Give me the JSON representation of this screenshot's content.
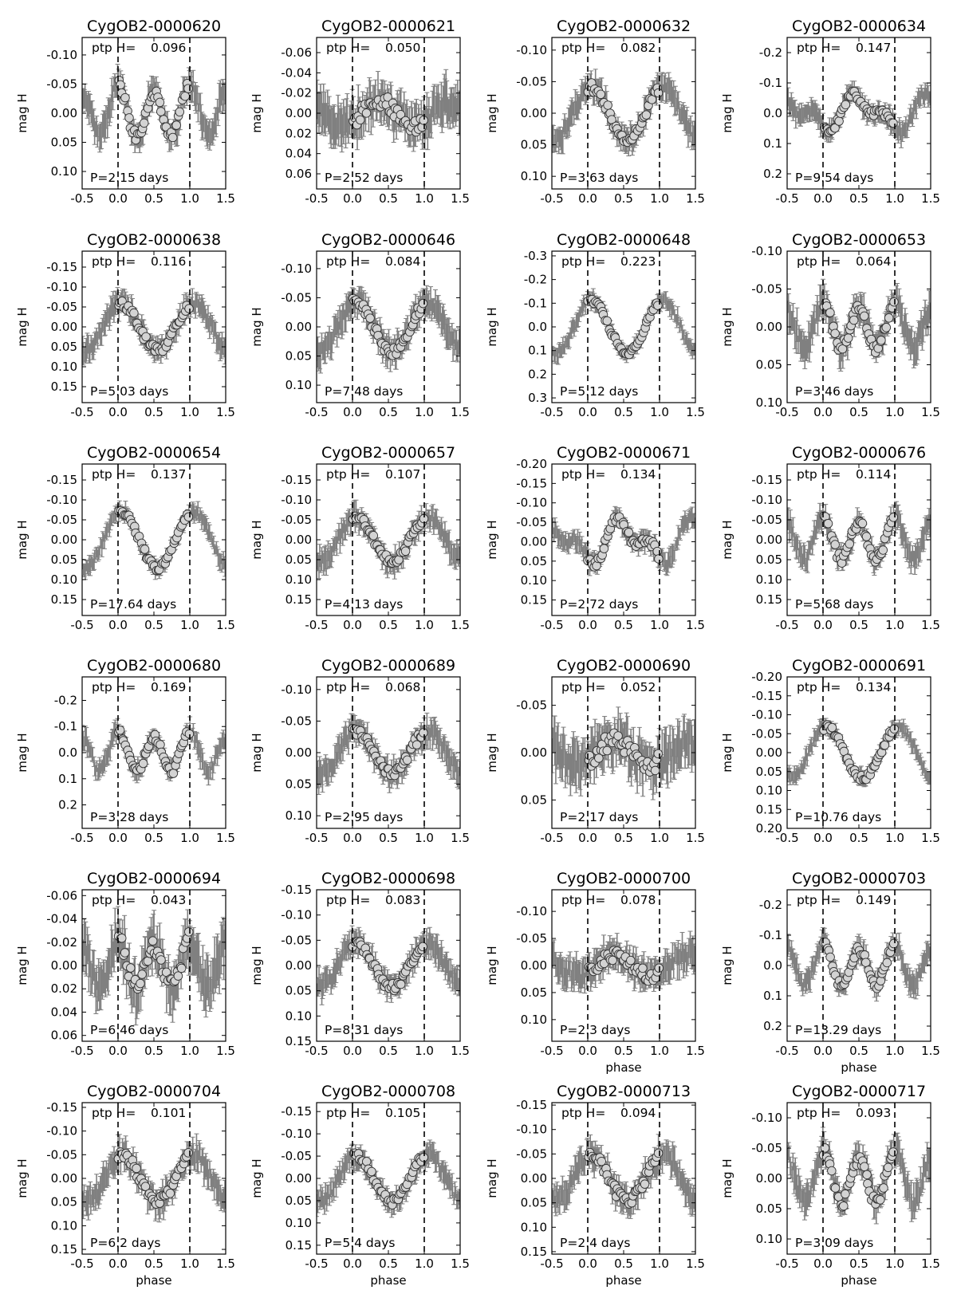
{
  "figure": {
    "rows": 6,
    "cols": 4,
    "xlim": [
      -0.5,
      1.5
    ],
    "xticks": [
      "-0.5",
      "0.0",
      "0.5",
      "1.0",
      "1.5"
    ],
    "reference_lines_at_phase": [
      0.0,
      1.0
    ],
    "ylabel": "mag H",
    "xlabel": "phase",
    "xlabel_panels": [
      18,
      19,
      20,
      21,
      22,
      23
    ],
    "ptp_prefix": "ptp H=",
    "y_inverted": true,
    "colors": {
      "errorbars": "#808080",
      "markers_fill": "#d3d3d3",
      "markers_edge": "#333333",
      "axes": "#000000",
      "reference_lines": "#000000"
    }
  },
  "chart_data": [
    {
      "type": "scatter",
      "title": "CygOB2-0000620",
      "ptp": "0.096",
      "period": "P=2.15 days",
      "ylim": [
        0.13,
        -0.13
      ],
      "yticks": [
        "-0.10",
        "-0.05",
        "0.00",
        "0.05",
        "0.10"
      ],
      "shape": "double",
      "amp": 0.048,
      "offset": -0.002,
      "err": 0.03
    },
    {
      "type": "scatter",
      "title": "CygOB2-0000621",
      "ptp": "0.050",
      "period": "P=2.52 days",
      "ylim": [
        0.075,
        -0.075
      ],
      "yticks": [
        "-0.06",
        "-0.04",
        "-0.02",
        "0.00",
        "0.02",
        "0.04",
        "0.06"
      ],
      "shape": "noisy",
      "amp": 0.025,
      "offset": 0.0,
      "err": 0.025
    },
    {
      "type": "scatter",
      "title": "CygOB2-0000632",
      "ptp": "0.082",
      "period": "P=3.63 days",
      "ylim": [
        0.12,
        -0.12
      ],
      "yticks": [
        "-0.10",
        "-0.05",
        "0.00",
        "0.05",
        "0.10"
      ],
      "shape": "single",
      "amp": 0.041,
      "offset": 0.0,
      "err": 0.025
    },
    {
      "type": "scatter",
      "title": "CygOB2-0000634",
      "ptp": "0.147",
      "period": "P=9.54 days",
      "ylim": [
        0.25,
        -0.25
      ],
      "yticks": [
        "-0.2",
        "-0.1",
        "0.0",
        "0.1",
        "0.2"
      ],
      "shape": "sawtooth",
      "amp": 0.074,
      "offset": 0.0,
      "err": 0.04
    },
    {
      "type": "scatter",
      "title": "CygOB2-0000638",
      "ptp": "0.116",
      "period": "P=5.03 days",
      "ylim": [
        0.19,
        -0.19
      ],
      "yticks": [
        "-0.15",
        "-0.10",
        "-0.05",
        "0.00",
        "0.05",
        "0.10",
        "0.15"
      ],
      "shape": "single",
      "amp": 0.058,
      "offset": 0.0,
      "err": 0.035
    },
    {
      "type": "scatter",
      "title": "CygOB2-0000646",
      "ptp": "0.084",
      "period": "P=7.48 days",
      "ylim": [
        0.13,
        -0.13
      ],
      "yticks": [
        "-0.10",
        "-0.05",
        "0.00",
        "0.05",
        "0.10"
      ],
      "shape": "single",
      "amp": 0.042,
      "offset": 0.0,
      "err": 0.03
    },
    {
      "type": "scatter",
      "title": "CygOB2-0000648",
      "ptp": "0.223",
      "period": "P=5.12 days",
      "ylim": [
        0.32,
        -0.32
      ],
      "yticks": [
        "-0.3",
        "-0.2",
        "-0.1",
        "0.0",
        "0.1",
        "0.2",
        "0.3"
      ],
      "shape": "single",
      "amp": 0.112,
      "offset": 0.0,
      "err": 0.04
    },
    {
      "type": "scatter",
      "title": "CygOB2-0000653",
      "ptp": "0.064",
      "period": "P=3.46 days",
      "ylim": [
        0.1,
        -0.1
      ],
      "yticks": [
        "-0.10",
        "-0.05",
        "0.00",
        "0.05",
        "0.10"
      ],
      "shape": "double",
      "amp": 0.032,
      "offset": 0.0,
      "err": 0.025
    },
    {
      "type": "scatter",
      "title": "CygOB2-0000654",
      "ptp": "0.137",
      "period": "P=17.64 days",
      "ylim": [
        0.19,
        -0.19
      ],
      "yticks": [
        "-0.15",
        "-0.10",
        "-0.05",
        "0.00",
        "0.05",
        "0.10",
        "0.15"
      ],
      "shape": "single",
      "amp": 0.07,
      "offset": 0.0,
      "err": 0.025
    },
    {
      "type": "scatter",
      "title": "CygOB2-0000657",
      "ptp": "0.107",
      "period": "P=4.13 days",
      "ylim": [
        0.19,
        -0.19
      ],
      "yticks": [
        "-0.15",
        "-0.10",
        "-0.05",
        "0.00",
        "0.05",
        "0.10",
        "0.15"
      ],
      "shape": "single",
      "amp": 0.055,
      "offset": 0.0,
      "err": 0.035
    },
    {
      "type": "scatter",
      "title": "CygOB2-0000671",
      "ptp": "0.134",
      "period": "P=2.72 days",
      "ylim": [
        0.19,
        -0.2
      ],
      "yticks": [
        "-0.20",
        "-0.15",
        "-0.10",
        "-0.05",
        "0.00",
        "0.05",
        "0.10",
        "0.15"
      ],
      "shape": "sawtooth",
      "amp": 0.067,
      "offset": 0.0,
      "err": 0.03
    },
    {
      "type": "scatter",
      "title": "CygOB2-0000676",
      "ptp": "0.114",
      "period": "P=5.68 days",
      "ylim": [
        0.19,
        -0.19
      ],
      "yticks": [
        "-0.15",
        "-0.10",
        "-0.05",
        "0.00",
        "0.05",
        "0.10",
        "0.15"
      ],
      "shape": "double",
      "amp": 0.057,
      "offset": 0.0,
      "err": 0.035
    },
    {
      "type": "scatter",
      "title": "CygOB2-0000680",
      "ptp": "0.169",
      "period": "P=3.28 days",
      "ylim": [
        0.29,
        -0.29
      ],
      "yticks": [
        "-0.2",
        "-0.1",
        "0.0",
        "0.1",
        "0.2"
      ],
      "shape": "double",
      "amp": 0.085,
      "offset": 0.0,
      "err": 0.045
    },
    {
      "type": "scatter",
      "title": "CygOB2-0000689",
      "ptp": "0.068",
      "period": "P=2.95 days",
      "ylim": [
        0.12,
        -0.12
      ],
      "yticks": [
        "-0.10",
        "-0.05",
        "0.00",
        "0.05",
        "0.10"
      ],
      "shape": "single",
      "amp": 0.034,
      "offset": 0.0,
      "err": 0.025
    },
    {
      "type": "scatter",
      "title": "CygOB2-0000690",
      "ptp": "0.052",
      "period": "P=2.17 days",
      "ylim": [
        0.08,
        -0.08
      ],
      "yticks": [
        "-0.05",
        "0.00",
        "0.05"
      ],
      "shape": "noisy",
      "amp": 0.026,
      "offset": 0.0,
      "err": 0.03
    },
    {
      "type": "scatter",
      "title": "CygOB2-0000691",
      "ptp": "0.134",
      "period": "P=10.76 days",
      "ylim": [
        0.2,
        -0.2
      ],
      "yticks": [
        "-0.20",
        "-0.15",
        "-0.10",
        "-0.05",
        "0.00",
        "0.05",
        "0.10",
        "0.15",
        "0.20"
      ],
      "shape": "single",
      "amp": 0.067,
      "offset": 0.0,
      "err": 0.025
    },
    {
      "type": "scatter",
      "title": "CygOB2-0000694",
      "ptp": "0.043",
      "period": "P=6.46 days",
      "ylim": [
        0.065,
        -0.065
      ],
      "yticks": [
        "-0.06",
        "-0.04",
        "-0.02",
        "0.00",
        "0.02",
        "0.04",
        "0.06"
      ],
      "shape": "double",
      "amp": 0.022,
      "offset": 0.0,
      "err": 0.025
    },
    {
      "type": "scatter",
      "title": "CygOB2-0000698",
      "ptp": "0.083",
      "period": "P=8.31 days",
      "ylim": [
        0.15,
        -0.15
      ],
      "yticks": [
        "-0.15",
        "-0.10",
        "-0.05",
        "0.00",
        "0.05",
        "0.10",
        "0.15"
      ],
      "shape": "single",
      "amp": 0.042,
      "offset": 0.0,
      "err": 0.03
    },
    {
      "type": "scatter",
      "title": "CygOB2-0000700",
      "ptp": "0.078",
      "period": "P=2.3 days",
      "ylim": [
        0.14,
        -0.14
      ],
      "yticks": [
        "-0.10",
        "-0.05",
        "0.00",
        "0.05",
        "0.10"
      ],
      "shape": "noisy",
      "amp": 0.039,
      "offset": 0.0,
      "err": 0.035
    },
    {
      "type": "scatter",
      "title": "CygOB2-0000703",
      "ptp": "0.149",
      "period": "P=13.29 days",
      "ylim": [
        0.25,
        -0.25
      ],
      "yticks": [
        "-0.2",
        "-0.1",
        "0.0",
        "0.1",
        "0.2"
      ],
      "shape": "double",
      "amp": 0.075,
      "offset": 0.0,
      "err": 0.045
    },
    {
      "type": "scatter",
      "title": "CygOB2-0000704",
      "ptp": "0.101",
      "period": "P=6.2 days",
      "ylim": [
        0.16,
        -0.16
      ],
      "yticks": [
        "-0.15",
        "-0.10",
        "-0.05",
        "0.00",
        "0.05",
        "0.10",
        "0.15"
      ],
      "shape": "single",
      "amp": 0.05,
      "offset": 0.0,
      "err": 0.035
    },
    {
      "type": "scatter",
      "title": "CygOB2-0000708",
      "ptp": "0.105",
      "period": "P=5.4 days",
      "ylim": [
        0.17,
        -0.17
      ],
      "yticks": [
        "-0.15",
        "-0.10",
        "-0.05",
        "0.00",
        "0.05",
        "0.10",
        "0.15"
      ],
      "shape": "single",
      "amp": 0.052,
      "offset": 0.0,
      "err": 0.03
    },
    {
      "type": "scatter",
      "title": "CygOB2-0000713",
      "ptp": "0.094",
      "period": "P=2.4 days",
      "ylim": [
        0.155,
        -0.155
      ],
      "yticks": [
        "-0.15",
        "-0.10",
        "-0.05",
        "0.00",
        "0.05",
        "0.10",
        "0.15"
      ],
      "shape": "single",
      "amp": 0.047,
      "offset": 0.0,
      "err": 0.035
    },
    {
      "type": "scatter",
      "title": "CygOB2-0000717",
      "ptp": "0.093",
      "period": "P=3.09 days",
      "ylim": [
        0.125,
        -0.125
      ],
      "yticks": [
        "-0.10",
        "-0.05",
        "0.00",
        "0.05",
        "0.10"
      ],
      "shape": "double",
      "amp": 0.047,
      "offset": 0.0,
      "err": 0.03
    }
  ]
}
